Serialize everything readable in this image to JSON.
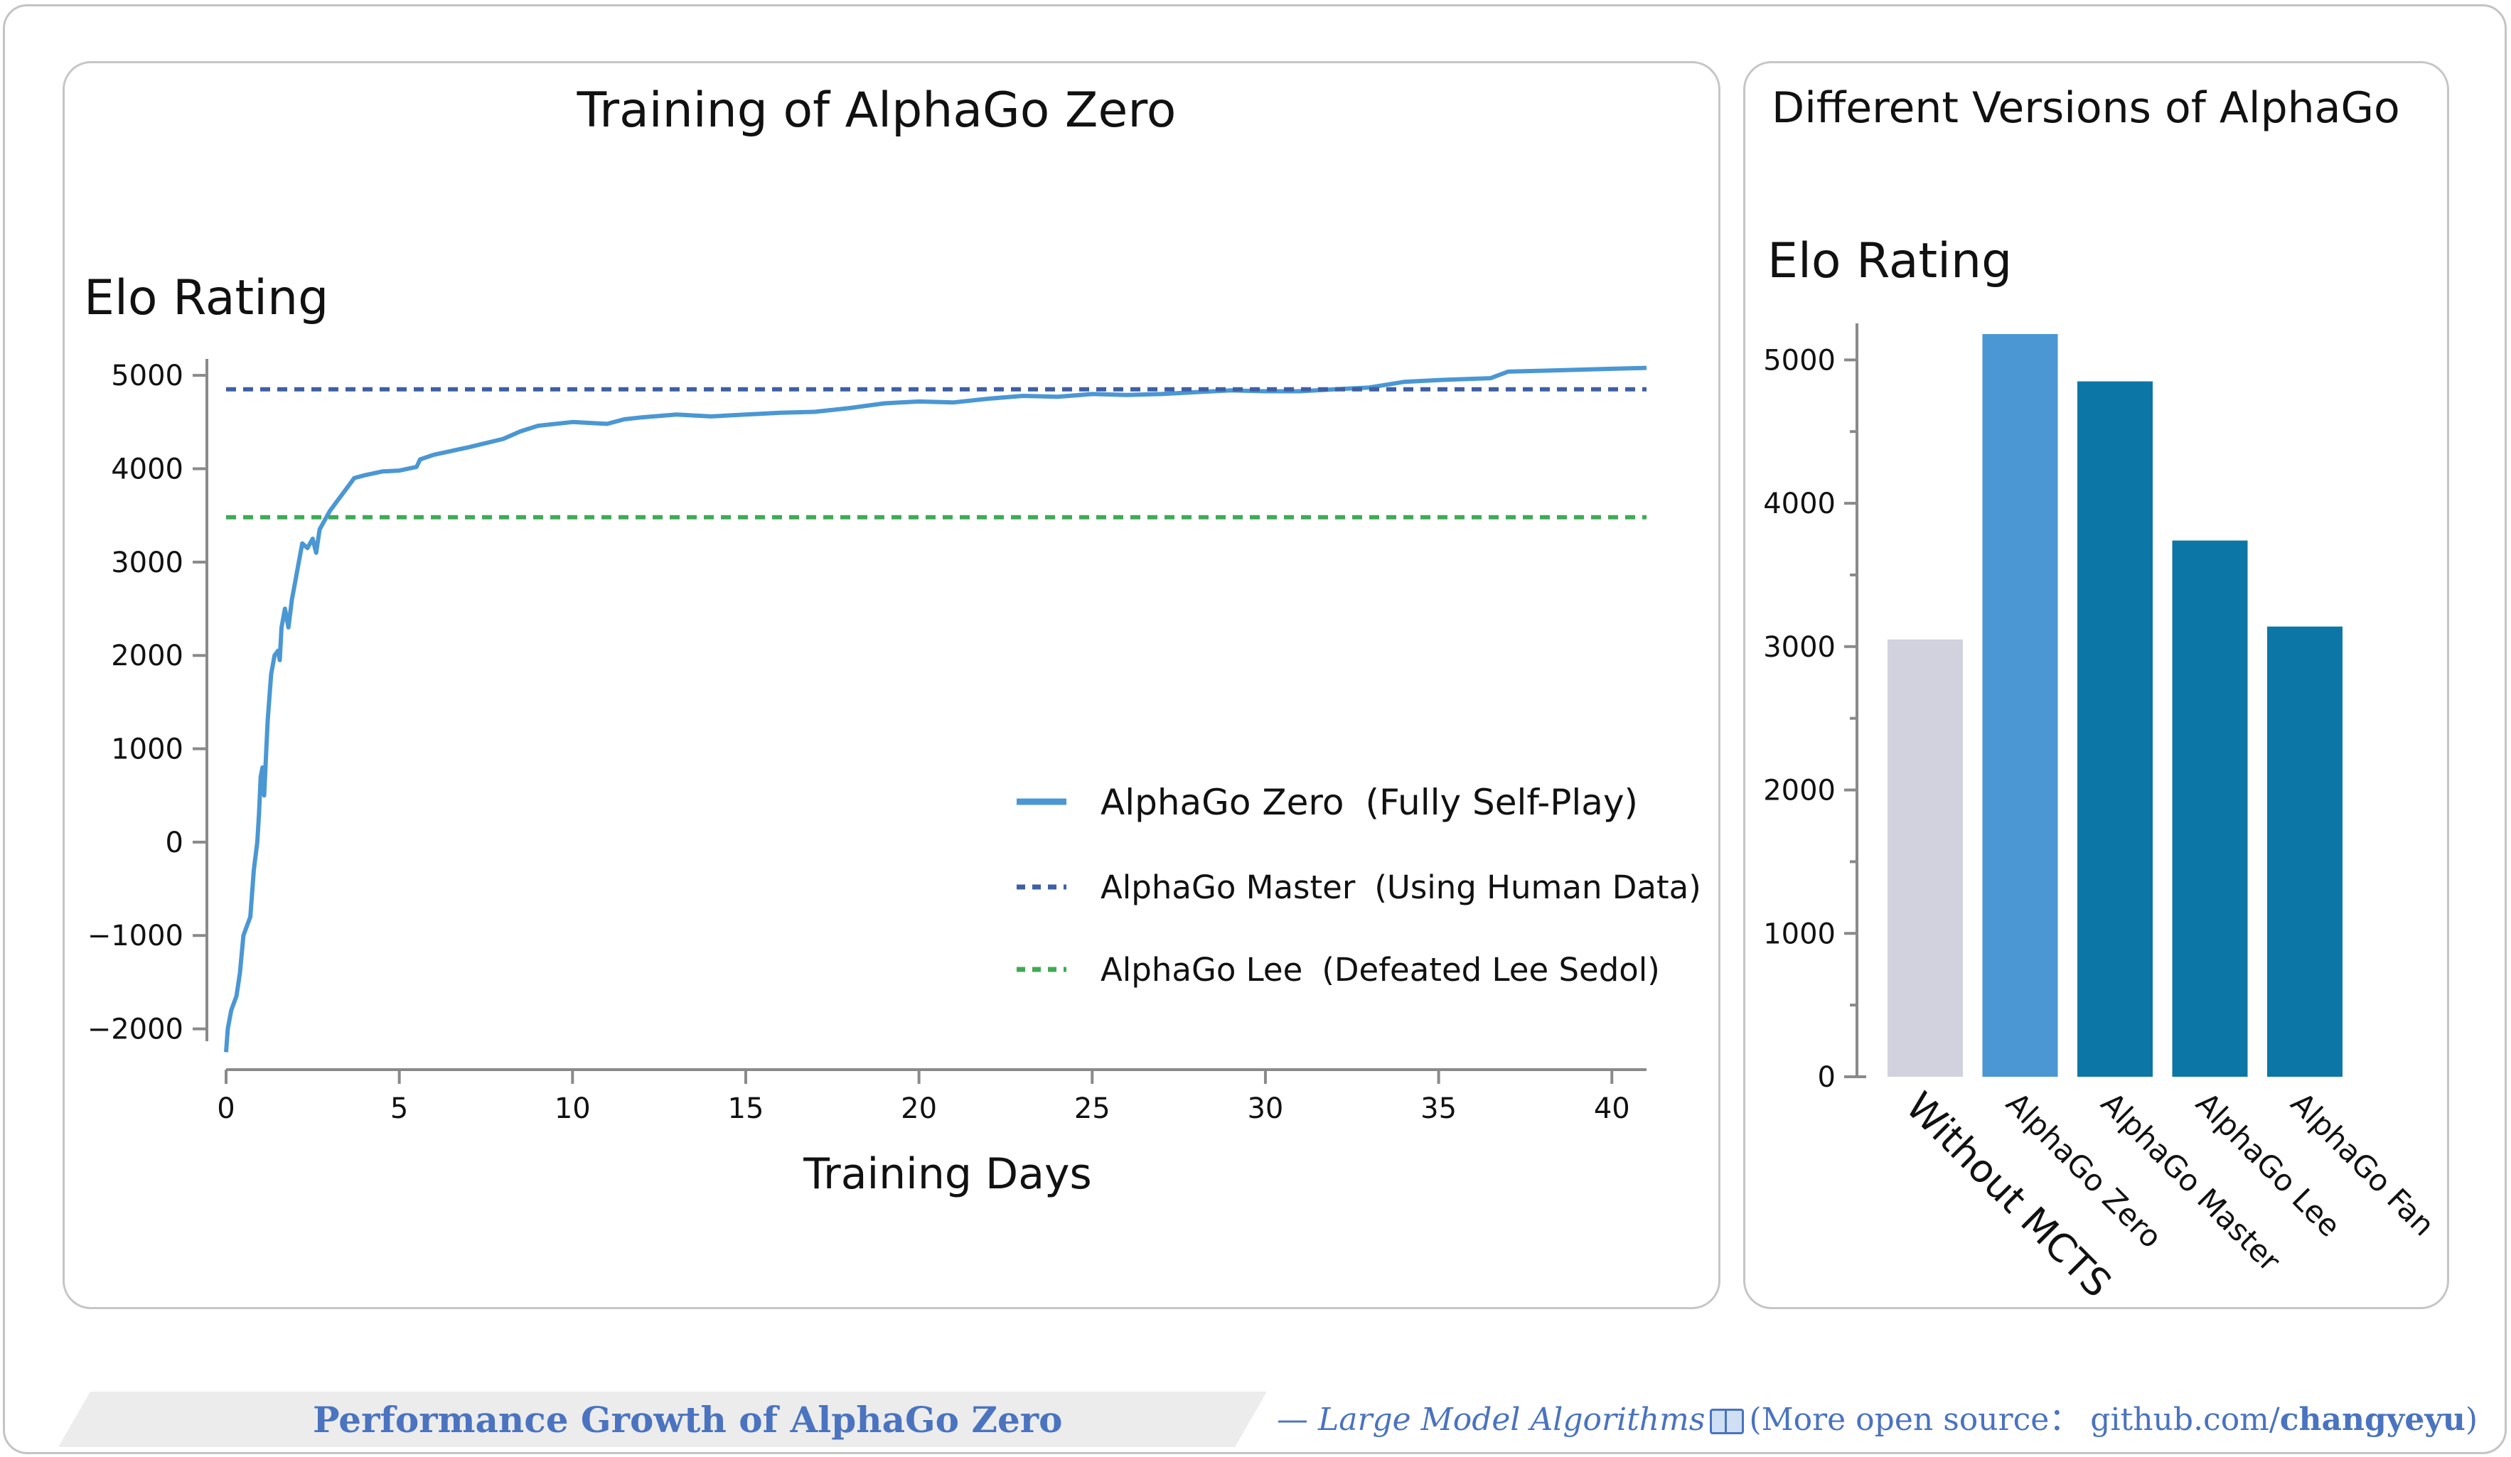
{
  "chart_data": [
    {
      "type": "line",
      "title": "Training of AlphaGo Zero",
      "ylabel": "Elo Rating",
      "xlabel": "Training Days",
      "xlim": [
        0,
        41
      ],
      "ylim": [
        -2300,
        5100
      ],
      "x_ticks": [
        0,
        5,
        10,
        15,
        20,
        25,
        30,
        35,
        40
      ],
      "y_ticks": [
        -2000,
        -1000,
        0,
        1000,
        2000,
        3000,
        4000,
        5000
      ],
      "y_tick_labels": [
        "−2000",
        "−1000",
        "0",
        "1000",
        "2000",
        "3000",
        "4000",
        "5000"
      ],
      "legend_position": "center-right",
      "series": [
        {
          "name": "AlphaGo Zero",
          "name_note": "(Fully Self-Play)",
          "style": "solid",
          "color": "#4a97d4",
          "points": [
            [
              0,
              -2250
            ],
            [
              0.05,
              -2000
            ],
            [
              0.15,
              -1800
            ],
            [
              0.3,
              -1650
            ],
            [
              0.4,
              -1400
            ],
            [
              0.5,
              -1000
            ],
            [
              0.6,
              -900
            ],
            [
              0.7,
              -800
            ],
            [
              0.8,
              -300
            ],
            [
              0.9,
              0
            ],
            [
              0.95,
              300
            ],
            [
              1.0,
              700
            ],
            [
              1.05,
              800
            ],
            [
              1.1,
              500
            ],
            [
              1.15,
              900
            ],
            [
              1.2,
              1300
            ],
            [
              1.3,
              1800
            ],
            [
              1.4,
              2000
            ],
            [
              1.5,
              2050
            ],
            [
              1.55,
              1950
            ],
            [
              1.6,
              2300
            ],
            [
              1.7,
              2500
            ],
            [
              1.8,
              2300
            ],
            [
              1.9,
              2600
            ],
            [
              2.0,
              2800
            ],
            [
              2.1,
              3000
            ],
            [
              2.2,
              3200
            ],
            [
              2.35,
              3150
            ],
            [
              2.5,
              3250
            ],
            [
              2.6,
              3100
            ],
            [
              2.7,
              3350
            ],
            [
              2.85,
              3450
            ],
            [
              3.0,
              3550
            ],
            [
              3.2,
              3650
            ],
            [
              3.5,
              3800
            ],
            [
              3.7,
              3900
            ],
            [
              4.0,
              3930
            ],
            [
              4.5,
              3970
            ],
            [
              5.0,
              3980
            ],
            [
              5.5,
              4020
            ],
            [
              5.6,
              4100
            ],
            [
              6.0,
              4150
            ],
            [
              7.0,
              4230
            ],
            [
              8.0,
              4320
            ],
            [
              8.5,
              4400
            ],
            [
              9.0,
              4460
            ],
            [
              10.0,
              4500
            ],
            [
              11.0,
              4480
            ],
            [
              11.5,
              4530
            ],
            [
              12.0,
              4550
            ],
            [
              13.0,
              4580
            ],
            [
              14.0,
              4560
            ],
            [
              15.0,
              4580
            ],
            [
              16.0,
              4600
            ],
            [
              17.0,
              4610
            ],
            [
              18.0,
              4650
            ],
            [
              19.0,
              4700
            ],
            [
              20.0,
              4720
            ],
            [
              21.0,
              4710
            ],
            [
              22.0,
              4750
            ],
            [
              23.0,
              4780
            ],
            [
              24.0,
              4770
            ],
            [
              25.0,
              4800
            ],
            [
              26.0,
              4790
            ],
            [
              27.0,
              4800
            ],
            [
              28.0,
              4820
            ],
            [
              29.0,
              4840
            ],
            [
              30.0,
              4830
            ],
            [
              31.0,
              4830
            ],
            [
              32.0,
              4850
            ],
            [
              33.0,
              4870
            ],
            [
              34.0,
              4930
            ],
            [
              35.0,
              4950
            ],
            [
              36.5,
              4970
            ],
            [
              37.0,
              5040
            ],
            [
              38.0,
              5050
            ],
            [
              39.0,
              5060
            ],
            [
              40.0,
              5070
            ],
            [
              41.0,
              5080
            ]
          ]
        },
        {
          "name": "AlphaGo Master",
          "name_note": "(Using Human Data)",
          "style": "dashed",
          "color": "#3f5fa3",
          "points": [
            [
              0,
              4850
            ],
            [
              41,
              4850
            ]
          ]
        },
        {
          "name": "AlphaGo Lee",
          "name_note": "(Defeated Lee Sedol)",
          "style": "dashed",
          "color": "#3faa55",
          "points": [
            [
              0,
              3480
            ],
            [
              41,
              3480
            ]
          ]
        }
      ]
    },
    {
      "type": "bar",
      "title": "Different Versions of AlphaGo",
      "ylabel": "Elo Rating",
      "xlabel": "",
      "ylim": [
        0,
        5200
      ],
      "y_ticks": [
        0,
        1000,
        2000,
        3000,
        4000,
        5000
      ],
      "categories": [
        "Without MCTS",
        "AlphaGo Zero",
        "AlphaGo Master",
        "AlphaGo Lee",
        "AlphaGo Fan"
      ],
      "values": [
        3050,
        5180,
        4850,
        3740,
        3140
      ],
      "bar_colors": [
        "#d1d2de",
        "#4a97d4",
        "#0c76a6",
        "#0c76a6",
        "#0c76a6"
      ]
    }
  ],
  "footer": {
    "caption": "Performance Growth of AlphaGo Zero",
    "credit_prefix": "— Large Model Algorithms",
    "book_icon": "book-icon",
    "credit_middle": "(More open source： github.com/",
    "credit_user": "changyeyu",
    "credit_suffix": ")"
  }
}
